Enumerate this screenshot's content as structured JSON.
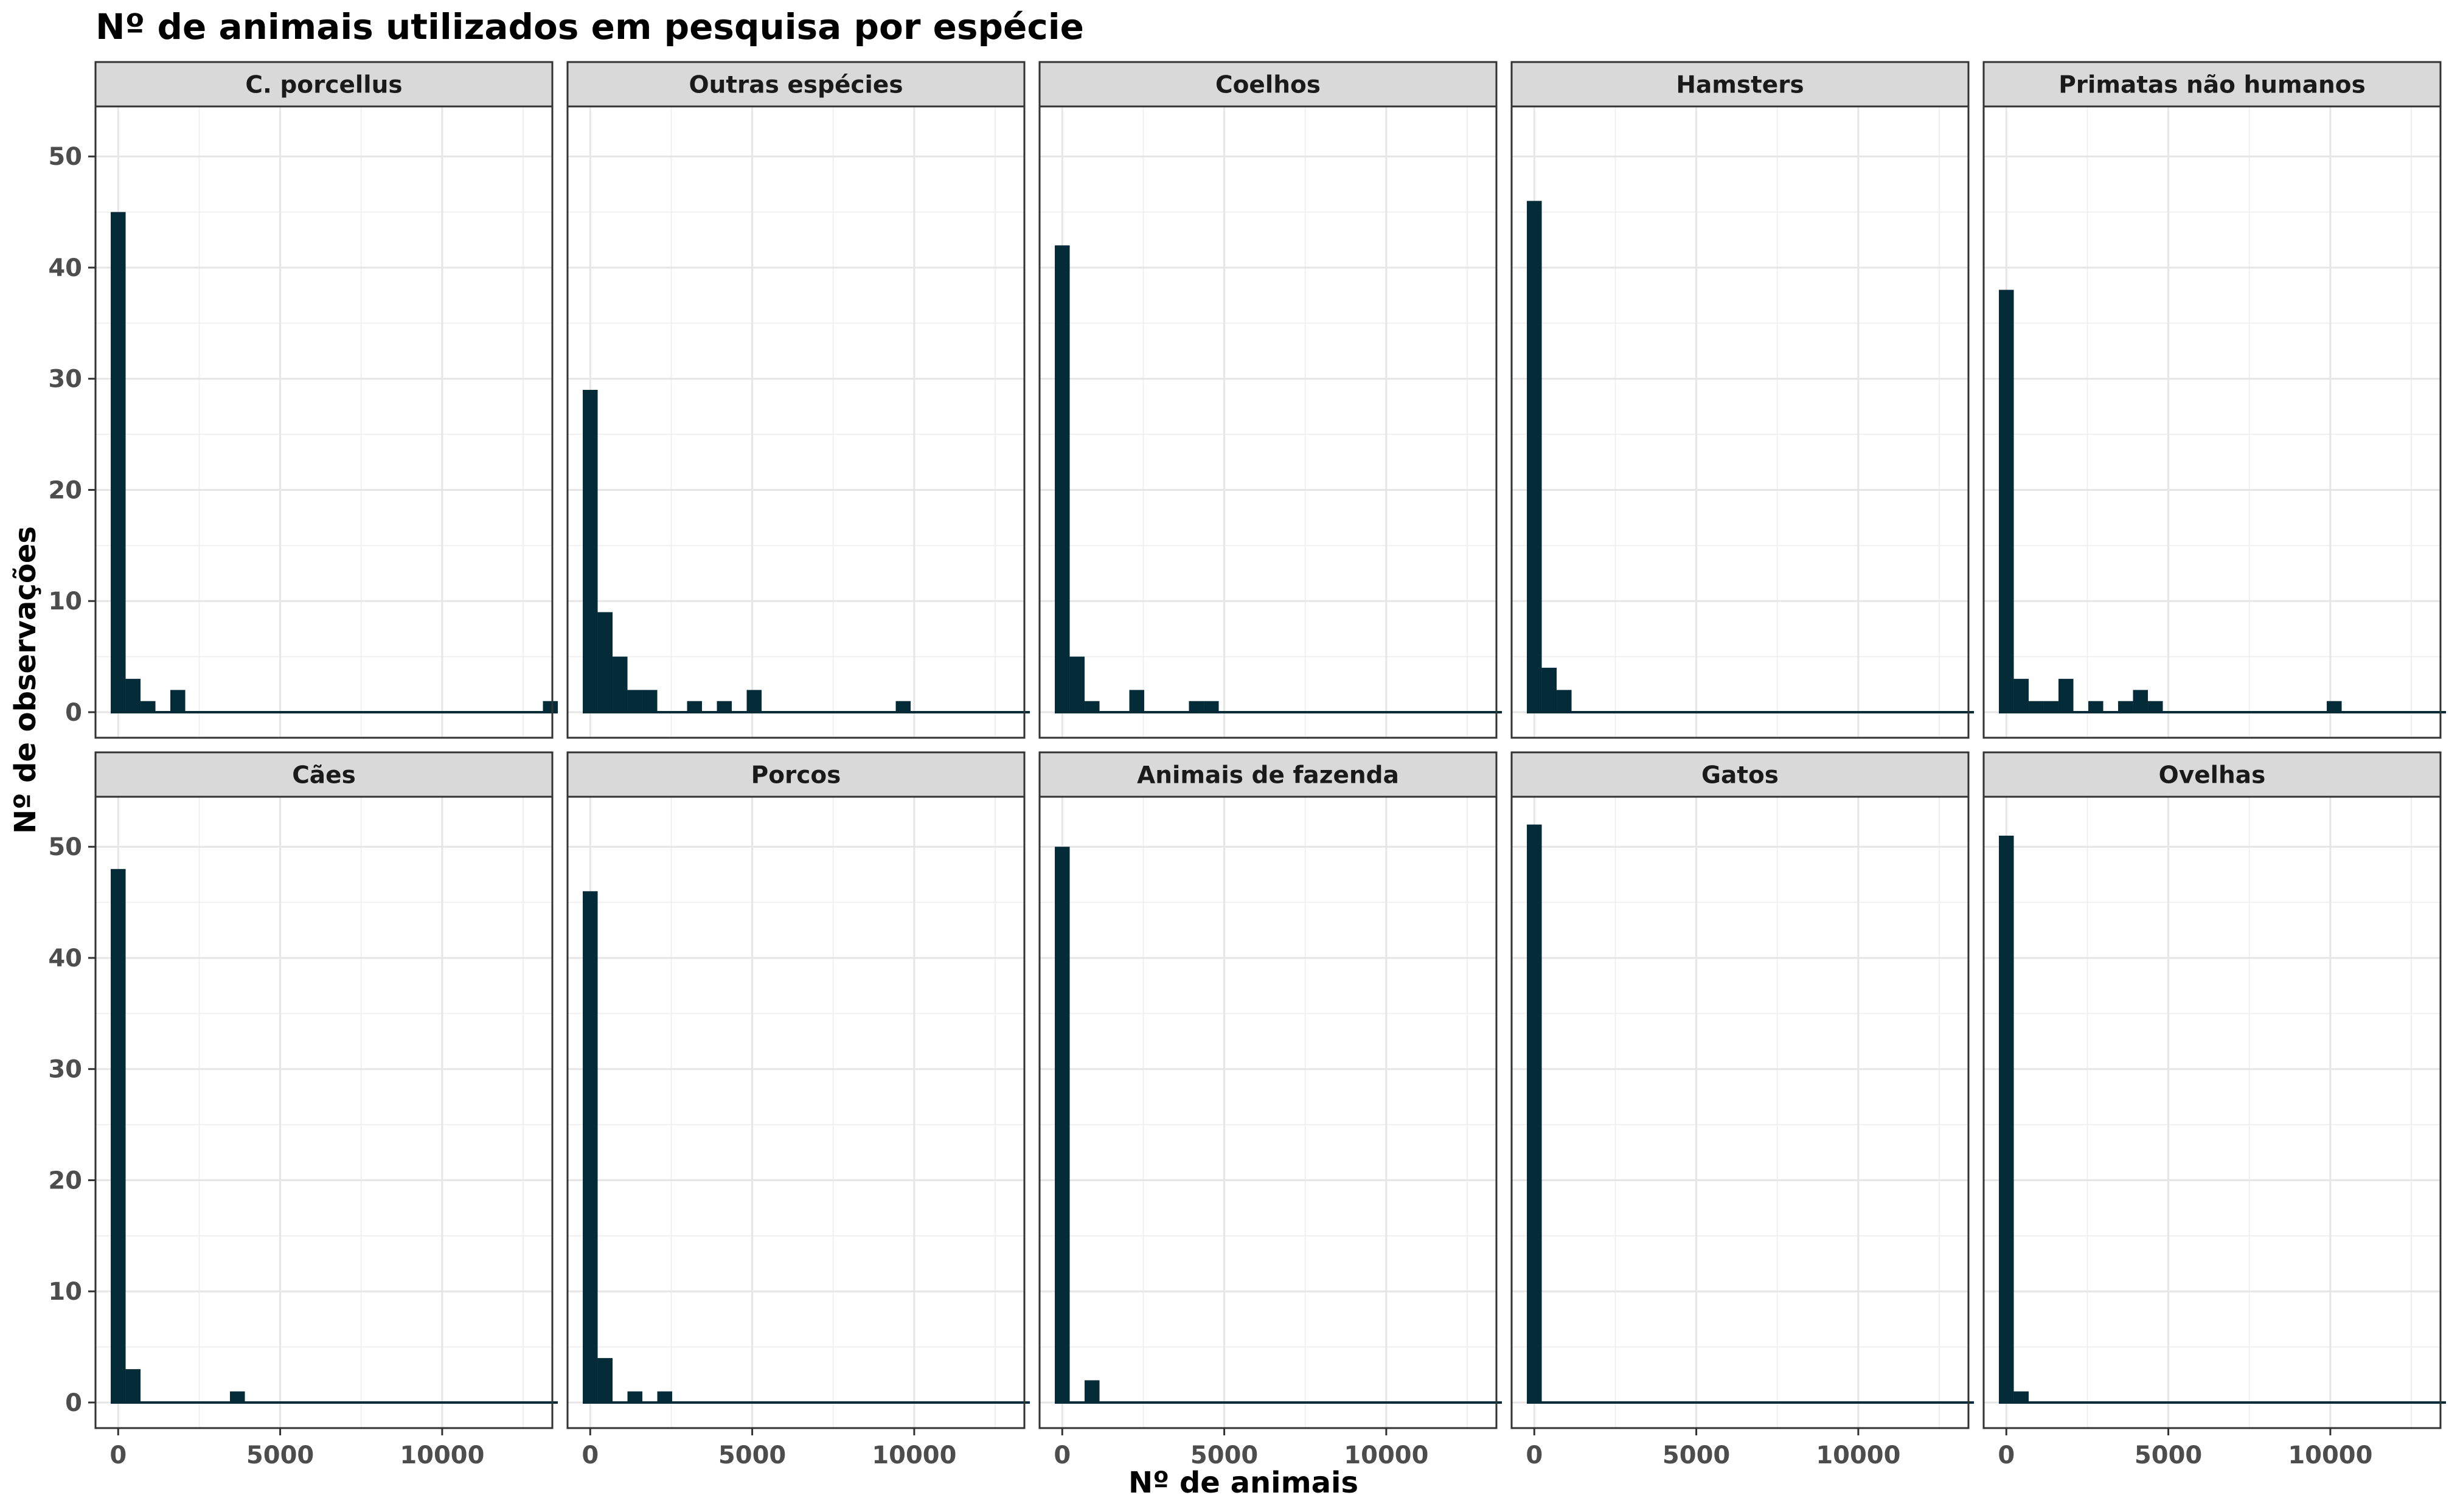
{
  "chart_data": {
    "type": "bar",
    "title": "Nº de animais utilizados em pesquisa por espécie",
    "xlabel": "Nº de animais",
    "ylabel": "Nº de observações",
    "xlim": [
      -700,
      13400
    ],
    "ylim": [
      -2.3,
      54.5
    ],
    "x_ticks": [
      0,
      5000,
      10000
    ],
    "y_ticks": [
      0,
      10,
      20,
      30,
      40,
      50
    ],
    "bin_width": 460,
    "grid": true,
    "color": "#042b38",
    "panels": [
      {
        "name": "C. porcellus",
        "bins": [
          [
            0,
            45
          ],
          [
            460,
            3
          ],
          [
            920,
            1
          ],
          [
            1840,
            2
          ],
          [
            13340,
            1
          ]
        ]
      },
      {
        "name": "Outras espécies",
        "bins": [
          [
            0,
            29
          ],
          [
            460,
            9
          ],
          [
            920,
            5
          ],
          [
            1380,
            2
          ],
          [
            1840,
            2
          ],
          [
            3220,
            1
          ],
          [
            4140,
            1
          ],
          [
            5060,
            2
          ],
          [
            9660,
            1
          ]
        ]
      },
      {
        "name": "Coelhos",
        "bins": [
          [
            0,
            42
          ],
          [
            460,
            5
          ],
          [
            920,
            1
          ],
          [
            2300,
            2
          ],
          [
            4140,
            1
          ],
          [
            4600,
            1
          ]
        ]
      },
      {
        "name": "Hamsters",
        "bins": [
          [
            0,
            46
          ],
          [
            460,
            4
          ],
          [
            920,
            2
          ]
        ]
      },
      {
        "name": "Primatas não humanos",
        "bins": [
          [
            0,
            38
          ],
          [
            460,
            3
          ],
          [
            920,
            1
          ],
          [
            1380,
            1
          ],
          [
            1840,
            3
          ],
          [
            2760,
            1
          ],
          [
            3680,
            1
          ],
          [
            4140,
            2
          ],
          [
            4600,
            1
          ],
          [
            10120,
            1
          ]
        ]
      },
      {
        "name": "Cães",
        "bins": [
          [
            0,
            48
          ],
          [
            460,
            3
          ],
          [
            3680,
            1
          ]
        ]
      },
      {
        "name": "Porcos",
        "bins": [
          [
            0,
            46
          ],
          [
            460,
            4
          ],
          [
            1380,
            1
          ],
          [
            2300,
            1
          ]
        ]
      },
      {
        "name": "Animais de fazenda",
        "bins": [
          [
            0,
            50
          ],
          [
            920,
            2
          ]
        ]
      },
      {
        "name": "Gatos",
        "bins": [
          [
            0,
            52
          ]
        ]
      },
      {
        "name": "Ovelhas",
        "bins": [
          [
            0,
            51
          ],
          [
            460,
            1
          ]
        ]
      }
    ]
  }
}
